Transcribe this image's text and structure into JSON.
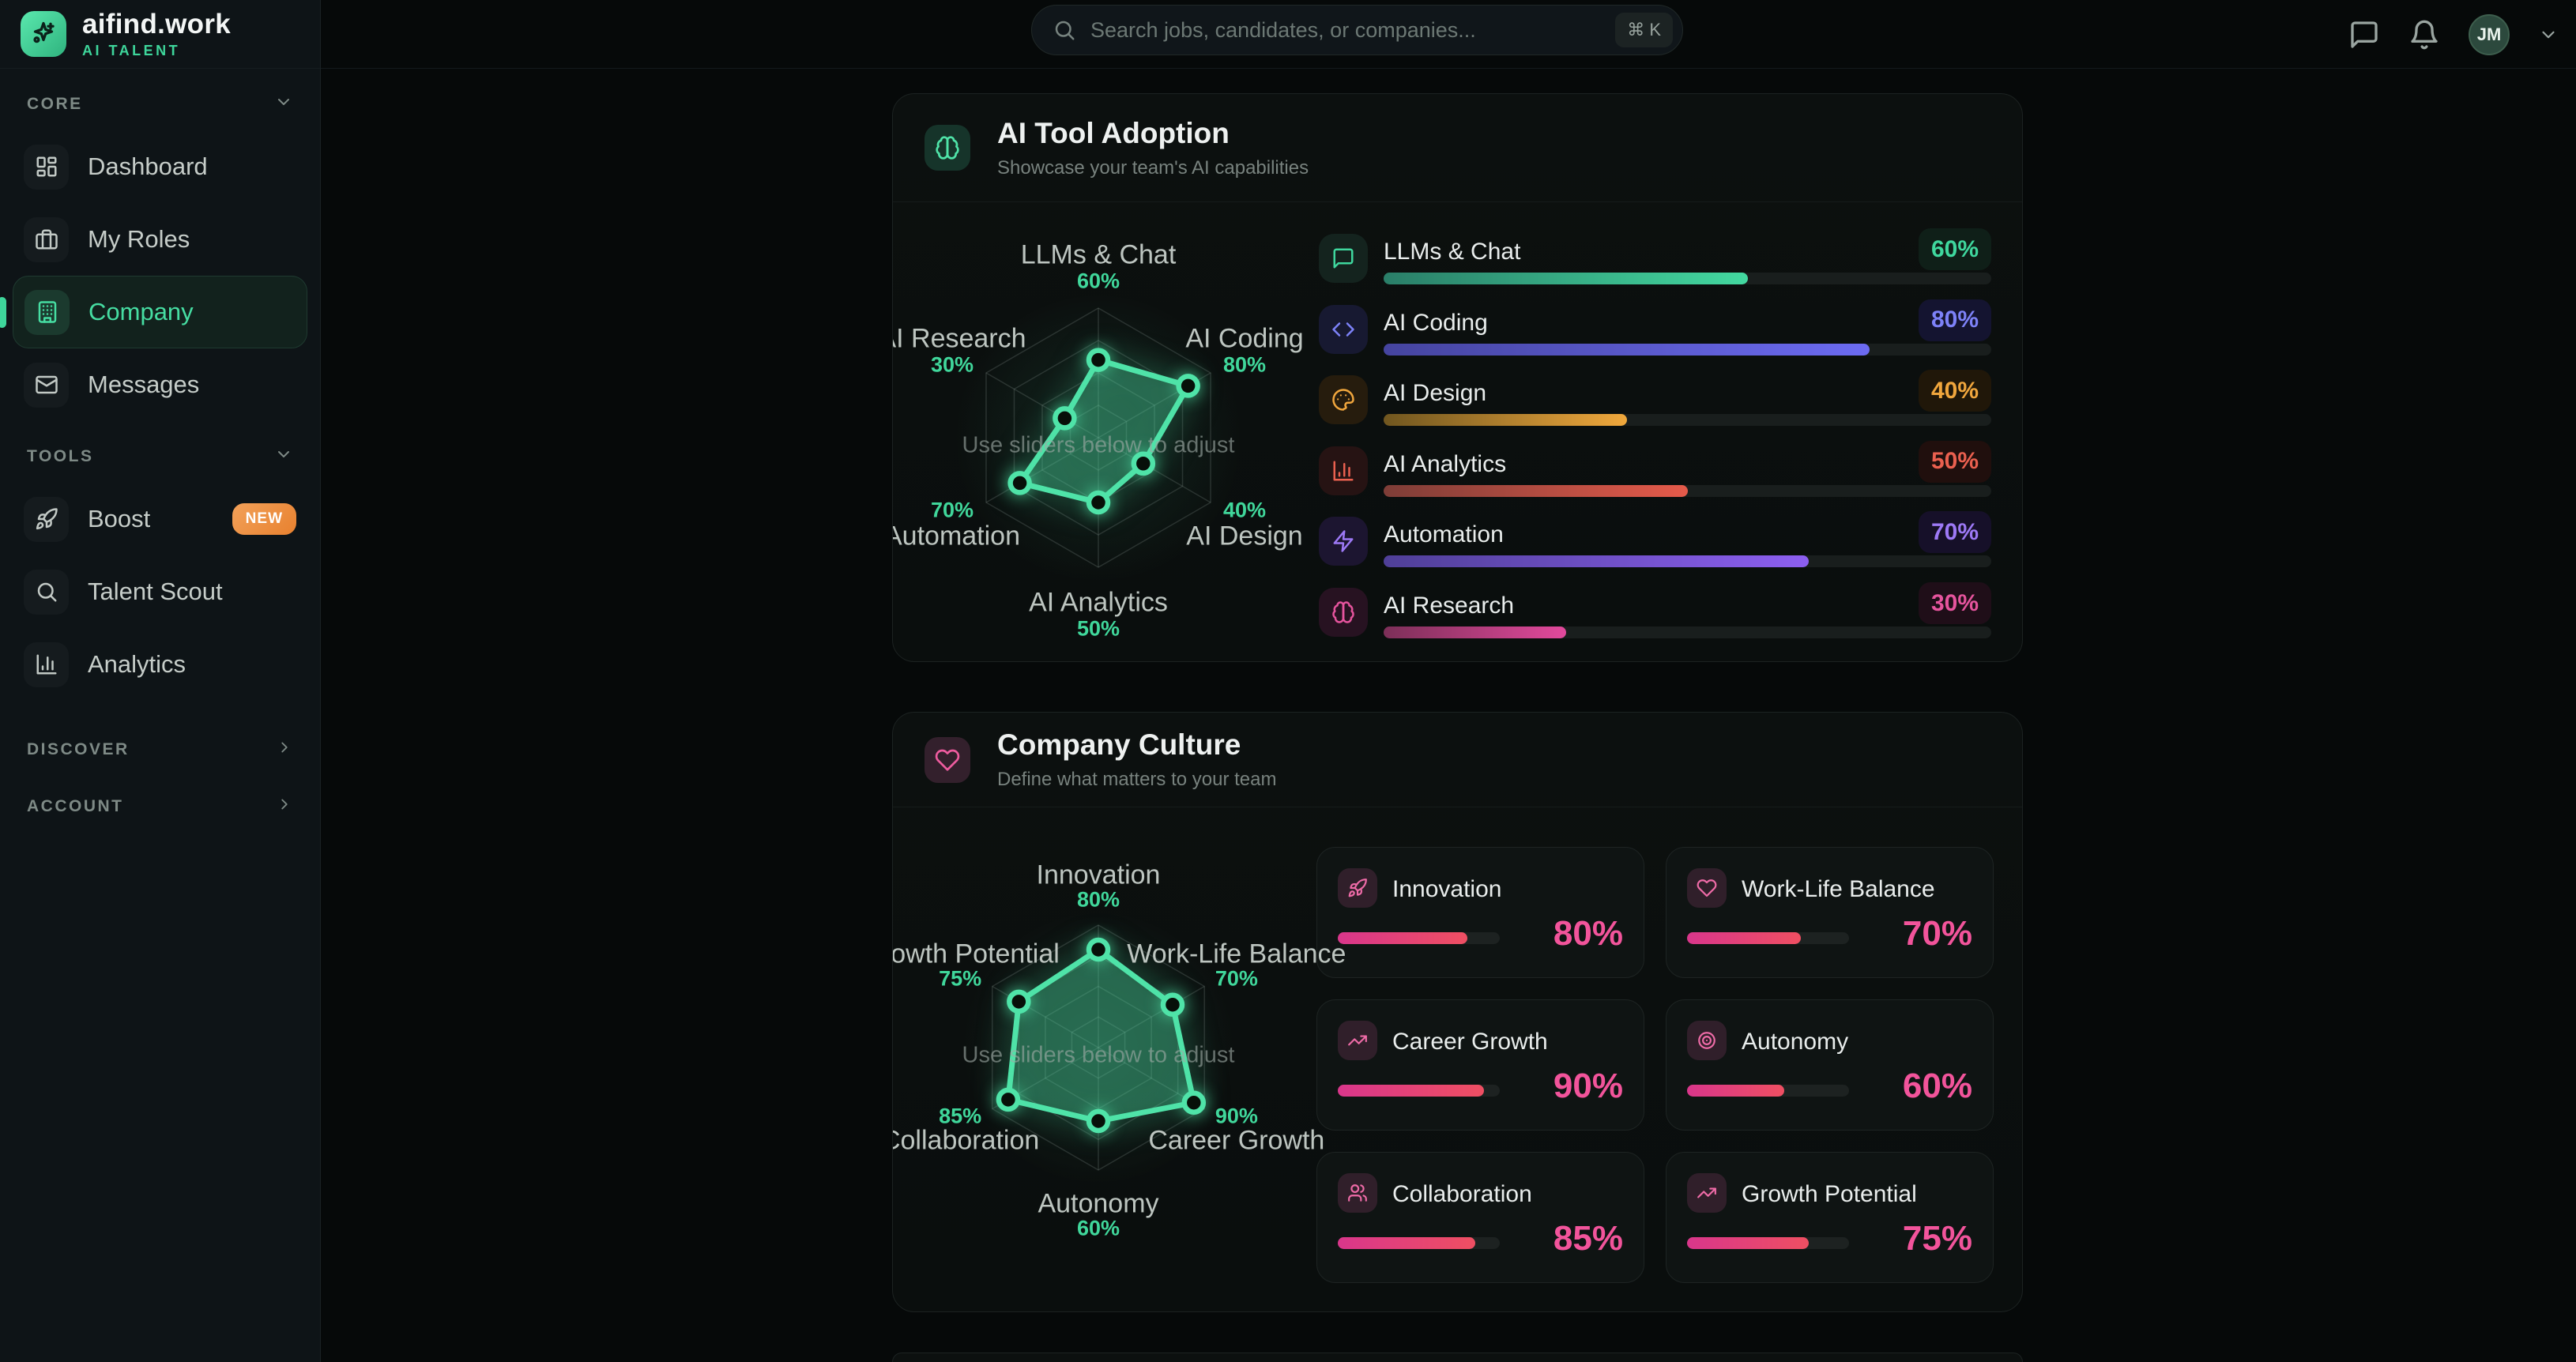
{
  "brand": {
    "name": "aifind.work",
    "tagline": "AI TALENT"
  },
  "search": {
    "placeholder": "Search jobs, candidates, or companies...",
    "shortcut": "⌘ K"
  },
  "topbar": {
    "avatar_initials": "JM"
  },
  "sidebar": {
    "sections": [
      {
        "label": "CORE",
        "items": [
          {
            "label": "Dashboard",
            "icon": "dashboard",
            "active": false
          },
          {
            "label": "My Roles",
            "icon": "briefcase",
            "active": false
          },
          {
            "label": "Company",
            "icon": "building",
            "active": true
          },
          {
            "label": "Messages",
            "icon": "mail",
            "active": false
          }
        ]
      },
      {
        "label": "TOOLS",
        "items": [
          {
            "label": "Boost",
            "icon": "rocket",
            "active": false,
            "badge": "NEW"
          },
          {
            "label": "Talent Scout",
            "icon": "search",
            "active": false
          },
          {
            "label": "Analytics",
            "icon": "bar-chart",
            "active": false
          }
        ]
      }
    ],
    "footer_links": [
      {
        "label": "DISCOVER"
      },
      {
        "label": "ACCOUNT"
      }
    ]
  },
  "adoption_card": {
    "title": "AI Tool Adoption",
    "subtitle": "Showcase your team's AI capabilities",
    "header_icon": "brain",
    "header_icon_color": "#4fe3a8",
    "header_icon_bg": "#16342a",
    "sliders": [
      {
        "label": "LLMs & Chat",
        "value": 60,
        "icon": "message-square",
        "accent": "#3fd79e",
        "icon_bg": "#14231e",
        "badge_bg": "#0f1f18",
        "bar_from": "#2a7e68",
        "bar_to": "#43d9a0"
      },
      {
        "label": "AI Coding",
        "value": 80,
        "icon": "code",
        "accent": "#7d82f8",
        "icon_bg": "#171931",
        "badge_bg": "#141430",
        "bar_from": "#45449f",
        "bar_to": "#6c6bf2"
      },
      {
        "label": "AI Design",
        "value": 40,
        "icon": "palette",
        "accent": "#f0a63d",
        "icon_bg": "#261c0d",
        "badge_bg": "#201709",
        "bar_from": "#70561f",
        "bar_to": "#f0a83c"
      },
      {
        "label": "AI Analytics",
        "value": 50,
        "icon": "bar-chart",
        "accent": "#ea604f",
        "icon_bg": "#261313",
        "badge_bg": "#200f0d",
        "bar_from": "#7e3d37",
        "bar_to": "#e55a4a"
      },
      {
        "label": "Automation",
        "value": 70,
        "icon": "zap",
        "accent": "#9d79f6",
        "icon_bg": "#1c1530",
        "badge_bg": "#161029",
        "bar_from": "#4f3f98",
        "bar_to": "#8d5ff1"
      },
      {
        "label": "AI Research",
        "value": 30,
        "icon": "brain",
        "accent": "#e5549d",
        "icon_bg": "#271221",
        "badge_bg": "#1f0e18",
        "bar_from": "#7c2f58",
        "bar_to": "#e2499c"
      }
    ]
  },
  "culture_card": {
    "title": "Company Culture",
    "subtitle": "Define what matters to your team",
    "header_icon": "heart",
    "header_icon_color": "#ee5c9f",
    "header_icon_bg": "#33202c",
    "item_accent": "#f2549b",
    "item_icon_color": "#ee6ba7",
    "item_icon_bg": "#301f2a",
    "bar_from": "#d9368b",
    "bar_to": "#ef4f62",
    "items": [
      {
        "label": "Innovation",
        "value": 80,
        "icon": "rocket"
      },
      {
        "label": "Work-Life Balance",
        "value": 70,
        "icon": "heart"
      },
      {
        "label": "Career Growth",
        "value": 90,
        "icon": "trending-up"
      },
      {
        "label": "Autonomy",
        "value": 60,
        "icon": "target"
      },
      {
        "label": "Collaboration",
        "value": 85,
        "icon": "users"
      },
      {
        "label": "Growth Potential",
        "value": 75,
        "icon": "trending-up"
      }
    ]
  },
  "chart_data": [
    {
      "type": "radar",
      "title": "AI Tool Adoption",
      "categories": [
        "LLMs & Chat",
        "AI Coding",
        "AI Design",
        "AI Analytics",
        "Automation",
        "AI Research"
      ],
      "values": [
        60,
        80,
        40,
        50,
        70,
        30
      ],
      "max": 100,
      "accent": "#4fe3a8",
      "center_hint": "Use sliders below to adjust",
      "grid": true,
      "rings": 4
    },
    {
      "type": "radar",
      "title": "Company Culture",
      "categories": [
        "Innovation",
        "Work-Life Balance",
        "Career Growth",
        "Autonomy",
        "Collaboration",
        "Growth Potential"
      ],
      "values": [
        80,
        70,
        90,
        60,
        85,
        75
      ],
      "max": 100,
      "accent": "#4fe3a8",
      "center_hint": "Use sliders below to adjust",
      "grid": true,
      "rings": 4
    }
  ]
}
